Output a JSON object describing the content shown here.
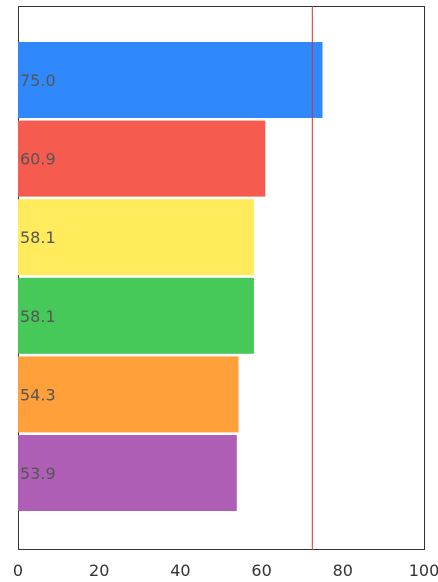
{
  "chart_data": {
    "type": "bar",
    "orientation": "horizontal",
    "categories": [
      "",
      "",
      "",
      "",
      "",
      ""
    ],
    "values": [
      75.0,
      60.9,
      58.1,
      58.1,
      54.3,
      53.9
    ],
    "value_labels": [
      "75.0",
      "60.9",
      "58.1",
      "58.1",
      "54.3",
      "53.9"
    ],
    "colors": [
      "#2F89FC",
      "#F55B4F",
      "#FFEB5B",
      "#47C95A",
      "#FFA03A",
      "#AE5FB5"
    ],
    "reference_line": {
      "value": 72.5,
      "color": "#D32F2F"
    },
    "xlim": [
      0,
      100
    ],
    "xticks": [
      0,
      20,
      40,
      60,
      80,
      100
    ],
    "xtick_labels": [
      "0",
      "20",
      "40",
      "60",
      "80",
      "100"
    ],
    "title": "",
    "xlabel": "",
    "ylabel": "",
    "grid": false,
    "legend": "none"
  }
}
